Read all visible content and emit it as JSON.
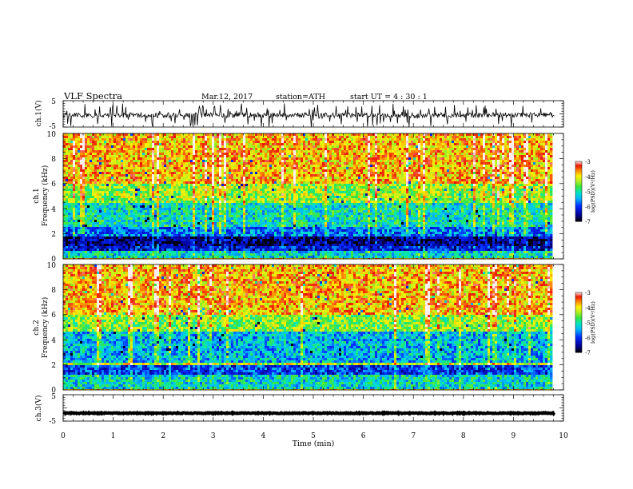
{
  "header": {
    "title": "VLF  Spectra",
    "date": "Mar.12, 2017",
    "station": "station=ATH",
    "start": "start  UT  =   4  : 30 : 1"
  },
  "colorbar": {
    "label": "log(PSD)(V²/Hz)",
    "ticks": [
      "-3",
      "-4",
      "-5",
      "-6",
      "-7"
    ]
  },
  "chart_data": {
    "type": "heatmap",
    "x_axis": {
      "label": "Time  (min)",
      "ticks": [
        "0",
        "1",
        "2",
        "3",
        "4",
        "5",
        "6",
        "7",
        "8",
        "9",
        "10"
      ],
      "range": [
        0,
        10
      ]
    },
    "data_extent_min": 9.82,
    "panels": [
      {
        "id": "ch1-waveform",
        "type": "line",
        "ylabel": "ch.1(V)",
        "ylim": [
          -5,
          5
        ],
        "yticks": [
          "5",
          "-5"
        ],
        "baseline_v": -0.5,
        "amplitude_v": 1.6,
        "spike_amplitude_v": 4.6
      },
      {
        "id": "ch1-spectrogram",
        "type": "heatmap",
        "ylabel_channel": "ch.1",
        "ylabel": "Frequency  (kHz)",
        "ylim": [
          0,
          10
        ],
        "yticks": [
          "10",
          "8",
          "6",
          "4",
          "2",
          "0"
        ],
        "zlim": [
          -7,
          -3
        ],
        "zlabel": "log(PSD)(V²/Hz)",
        "bands": [
          {
            "f": [
              0,
              0.1
            ],
            "level": -4.2
          },
          {
            "f": [
              0.1,
              0.7
            ],
            "level": -5.2
          },
          {
            "f": [
              0.7,
              1.0
            ],
            "level": -6.2
          },
          {
            "f": [
              1.0,
              1.8
            ],
            "level": -6.6
          },
          {
            "f": [
              1.8,
              2.6
            ],
            "level": -5.7
          },
          {
            "f": [
              2.6,
              4.5
            ],
            "level": -5.1
          },
          {
            "f": [
              4.5,
              6.0
            ],
            "level": -4.4
          },
          {
            "f": [
              6.0,
              10.0
            ],
            "level": -3.8
          }
        ]
      },
      {
        "id": "ch2-spectrogram",
        "type": "heatmap",
        "ylabel_channel": "ch.2",
        "ylabel": "Frequency  (kHz)",
        "ylim": [
          0,
          10
        ],
        "yticks": [
          "10",
          "8",
          "6",
          "4",
          "2",
          "0"
        ],
        "zlim": [
          -7,
          -3
        ],
        "zlabel": "log(PSD)(V²/Hz)",
        "bands": [
          {
            "f": [
              0,
              0.1
            ],
            "level": -4.2
          },
          {
            "f": [
              0.1,
              1.2
            ],
            "level": -5.2
          },
          {
            "f": [
              1.2,
              2.0
            ],
            "level": -6.0
          },
          {
            "f": [
              2.0,
              2.2
            ],
            "level": -4.2
          },
          {
            "f": [
              2.2,
              4.6
            ],
            "level": -5.4
          },
          {
            "f": [
              4.6,
              6.0
            ],
            "level": -4.5
          },
          {
            "f": [
              6.0,
              10.0
            ],
            "level": -3.8
          }
        ]
      },
      {
        "id": "ch3-waveform",
        "type": "line",
        "ylabel": "ch.3(V)",
        "ylim": [
          -5,
          5
        ],
        "yticks": [
          "5",
          "-5"
        ],
        "baseline_v": -2.0,
        "amplitude_v": 0.3,
        "spike_amplitude_v": 0.3
      }
    ]
  }
}
